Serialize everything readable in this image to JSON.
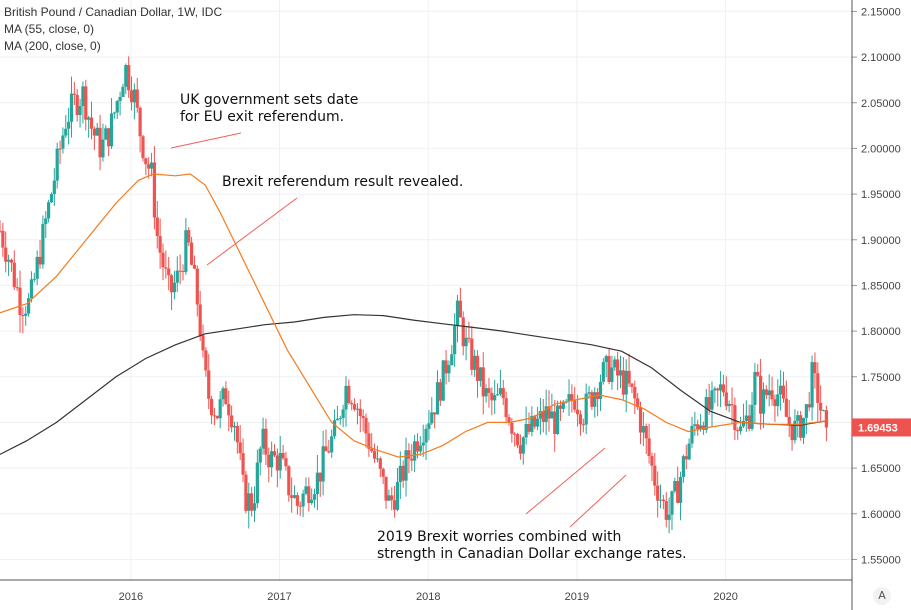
{
  "chart_data": {
    "type": "candlestick",
    "title": "British Pound / Canadian Dollar, 1W, IDC",
    "indicators": [
      "MA (55, close, 0)",
      "MA (200, close, 0)"
    ],
    "last_price": "1.69453",
    "y_ticks": [
      "2.15000",
      "2.10000",
      "2.05000",
      "2.00000",
      "1.95000",
      "1.90000",
      "1.85000",
      "1.80000",
      "1.75000",
      "1.70000",
      "1.65000",
      "1.60000",
      "1.55000"
    ],
    "x_ticks": [
      "2016",
      "2017",
      "2018",
      "2019",
      "2020"
    ],
    "ylim": [
      1.5275,
      2.1625
    ],
    "xlim": [
      2015.12,
      2020.85
    ],
    "grid": true,
    "colors": {
      "up": "#26a69a",
      "down": "#ef5350",
      "ma55": "#f57c1f",
      "ma200": "#333333",
      "annotation_line": "#f0605a",
      "last_price_badge": "#ef5350"
    },
    "price_path": [
      [
        2015.12,
        1.91
      ],
      [
        2015.18,
        1.88
      ],
      [
        2015.26,
        1.83
      ],
      [
        2015.32,
        1.83
      ],
      [
        2015.38,
        1.88
      ],
      [
        2015.44,
        1.93
      ],
      [
        2015.5,
        1.98
      ],
      [
        2015.56,
        2.03
      ],
      [
        2015.62,
        2.05
      ],
      [
        2015.68,
        2.06
      ],
      [
        2015.74,
        2.02
      ],
      [
        2015.8,
        2.0
      ],
      [
        2015.86,
        2.02
      ],
      [
        2015.92,
        2.06
      ],
      [
        2015.96,
        2.09
      ],
      [
        2016.02,
        2.06
      ],
      [
        2016.06,
        2.02
      ],
      [
        2016.1,
        1.99
      ],
      [
        2016.14,
        1.97
      ],
      [
        2016.18,
        1.9
      ],
      [
        2016.22,
        1.87
      ],
      [
        2016.26,
        1.84
      ],
      [
        2016.32,
        1.86
      ],
      [
        2016.38,
        1.9
      ],
      [
        2016.42,
        1.86
      ],
      [
        2016.46,
        1.82
      ],
      [
        2016.48,
        1.77
      ],
      [
        2016.52,
        1.73
      ],
      [
        2016.58,
        1.71
      ],
      [
        2016.64,
        1.73
      ],
      [
        2016.7,
        1.7
      ],
      [
        2016.76,
        1.62
      ],
      [
        2016.82,
        1.61
      ],
      [
        2016.88,
        1.68
      ],
      [
        2016.94,
        1.66
      ],
      [
        2017.0,
        1.66
      ],
      [
        2017.06,
        1.63
      ],
      [
        2017.12,
        1.61
      ],
      [
        2017.2,
        1.63
      ],
      [
        2017.26,
        1.64
      ],
      [
        2017.32,
        1.67
      ],
      [
        2017.38,
        1.69
      ],
      [
        2017.44,
        1.74
      ],
      [
        2017.5,
        1.73
      ],
      [
        2017.56,
        1.7
      ],
      [
        2017.62,
        1.67
      ],
      [
        2017.68,
        1.64
      ],
      [
        2017.74,
        1.61
      ],
      [
        2017.8,
        1.63
      ],
      [
        2017.86,
        1.66
      ],
      [
        2017.92,
        1.68
      ],
      [
        2017.98,
        1.7
      ],
      [
        2018.04,
        1.72
      ],
      [
        2018.1,
        1.75
      ],
      [
        2018.16,
        1.79
      ],
      [
        2018.2,
        1.82
      ],
      [
        2018.26,
        1.78
      ],
      [
        2018.32,
        1.76
      ],
      [
        2018.38,
        1.73
      ],
      [
        2018.44,
        1.72
      ],
      [
        2018.5,
        1.73
      ],
      [
        2018.56,
        1.7
      ],
      [
        2018.62,
        1.68
      ],
      [
        2018.68,
        1.69
      ],
      [
        2018.74,
        1.7
      ],
      [
        2018.8,
        1.71
      ],
      [
        2018.86,
        1.7
      ],
      [
        2018.92,
        1.71
      ],
      [
        2018.98,
        1.73
      ],
      [
        2019.04,
        1.71
      ],
      [
        2019.1,
        1.73
      ],
      [
        2019.16,
        1.75
      ],
      [
        2019.22,
        1.76
      ],
      [
        2019.28,
        1.75
      ],
      [
        2019.34,
        1.74
      ],
      [
        2019.4,
        1.72
      ],
      [
        2019.46,
        1.68
      ],
      [
        2019.52,
        1.64
      ],
      [
        2019.58,
        1.61
      ],
      [
        2019.62,
        1.6
      ],
      [
        2019.68,
        1.63
      ],
      [
        2019.74,
        1.67
      ],
      [
        2019.8,
        1.7
      ],
      [
        2019.86,
        1.71
      ],
      [
        2019.92,
        1.72
      ],
      [
        2019.98,
        1.74
      ],
      [
        2020.04,
        1.72
      ],
      [
        2020.1,
        1.69
      ],
      [
        2020.16,
        1.71
      ],
      [
        2020.2,
        1.75
      ],
      [
        2020.24,
        1.72
      ],
      [
        2020.3,
        1.74
      ],
      [
        2020.36,
        1.73
      ],
      [
        2020.42,
        1.7
      ],
      [
        2020.48,
        1.69
      ],
      [
        2020.54,
        1.71
      ],
      [
        2020.58,
        1.75
      ],
      [
        2020.62,
        1.73
      ],
      [
        2020.66,
        1.7
      ],
      [
        2020.69,
        1.6945
      ]
    ],
    "ma55": [
      [
        2015.12,
        1.82
      ],
      [
        2015.3,
        1.83
      ],
      [
        2015.5,
        1.86
      ],
      [
        2015.7,
        1.9
      ],
      [
        2015.9,
        1.94
      ],
      [
        2016.05,
        1.965
      ],
      [
        2016.15,
        1.972
      ],
      [
        2016.3,
        1.97
      ],
      [
        2016.4,
        1.972
      ],
      [
        2016.5,
        1.96
      ],
      [
        2016.6,
        1.93
      ],
      [
        2016.75,
        1.88
      ],
      [
        2016.9,
        1.83
      ],
      [
        2017.05,
        1.78
      ],
      [
        2017.2,
        1.74
      ],
      [
        2017.35,
        1.7
      ],
      [
        2017.5,
        1.68
      ],
      [
        2017.65,
        1.67
      ],
      [
        2017.8,
        1.662
      ],
      [
        2017.95,
        1.665
      ],
      [
        2018.1,
        1.675
      ],
      [
        2018.25,
        1.69
      ],
      [
        2018.4,
        1.7
      ],
      [
        2018.55,
        1.7
      ],
      [
        2018.7,
        1.705
      ],
      [
        2018.85,
        1.72
      ],
      [
        2019.0,
        1.725
      ],
      [
        2019.15,
        1.73
      ],
      [
        2019.3,
        1.725
      ],
      [
        2019.45,
        1.715
      ],
      [
        2019.6,
        1.7
      ],
      [
        2019.75,
        1.69
      ],
      [
        2019.9,
        1.695
      ],
      [
        2020.1,
        1.7
      ],
      [
        2020.3,
        1.698
      ],
      [
        2020.5,
        1.698
      ],
      [
        2020.69,
        1.702
      ]
    ],
    "ma200": [
      [
        2015.12,
        1.665
      ],
      [
        2015.3,
        1.68
      ],
      [
        2015.5,
        1.7
      ],
      [
        2015.7,
        1.725
      ],
      [
        2015.9,
        1.75
      ],
      [
        2016.1,
        1.77
      ],
      [
        2016.3,
        1.785
      ],
      [
        2016.5,
        1.797
      ],
      [
        2016.7,
        1.802
      ],
      [
        2016.9,
        1.807
      ],
      [
        2017.1,
        1.81
      ],
      [
        2017.3,
        1.815
      ],
      [
        2017.5,
        1.818
      ],
      [
        2017.7,
        1.817
      ],
      [
        2017.9,
        1.812
      ],
      [
        2018.1,
        1.808
      ],
      [
        2018.3,
        1.804
      ],
      [
        2018.5,
        1.8
      ],
      [
        2018.7,
        1.795
      ],
      [
        2018.9,
        1.79
      ],
      [
        2019.1,
        1.785
      ],
      [
        2019.3,
        1.778
      ],
      [
        2019.5,
        1.76
      ],
      [
        2019.7,
        1.735
      ],
      [
        2019.9,
        1.712
      ],
      [
        2020.1,
        1.7
      ],
      [
        2020.3,
        1.698
      ],
      [
        2020.5,
        1.697
      ],
      [
        2020.69,
        1.702
      ]
    ]
  },
  "annotations": [
    {
      "text_lines": [
        "UK government sets date",
        "for EU exit referendum."
      ]
    },
    {
      "text_lines": [
        "Brexit referendum result revealed."
      ]
    },
    {
      "text_lines": [
        "2019 Brexit worries combined with",
        "strength in Canadian Dollar exchange rates."
      ]
    }
  ],
  "scale_button": "A"
}
